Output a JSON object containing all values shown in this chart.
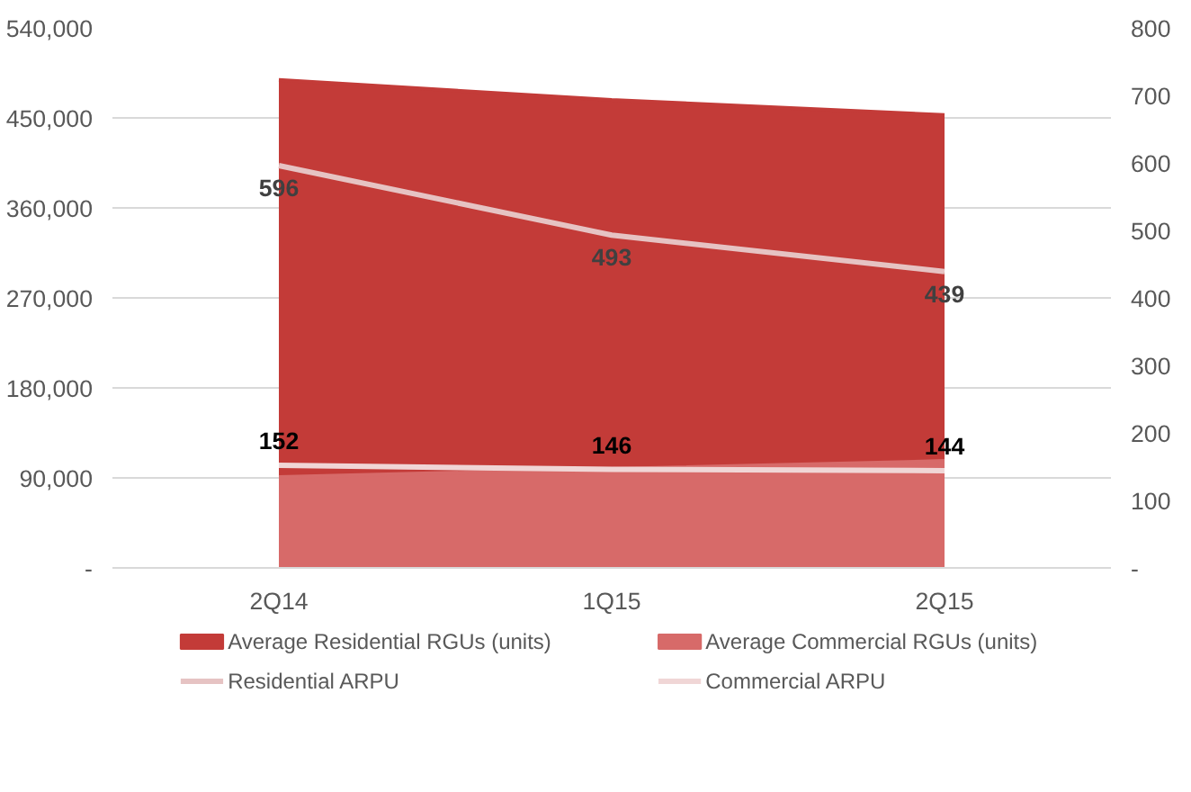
{
  "chart_data": {
    "type": "area",
    "categories": [
      "2Q14",
      "1Q15",
      "2Q15"
    ],
    "series": [
      {
        "name": "Average Residential RGUs (units)",
        "color": "#c33b38",
        "values": [
          488000,
          468000,
          453000
        ]
      },
      {
        "name": "Average Commercial RGUs (units)",
        "color": "#d76a69",
        "values": [
          91000,
          99000,
          107000
        ]
      },
      {
        "name": "Residential ARPU",
        "type": "line",
        "axis": "y2",
        "color": "#e6c3c3",
        "values": [
          596,
          493,
          439
        ],
        "value_labels": [
          "596",
          "493",
          "439"
        ]
      },
      {
        "name": "Commercial ARPU",
        "type": "line",
        "axis": "y2",
        "color": "#f0d6d6",
        "values": [
          152,
          146,
          144
        ],
        "value_labels": [
          "152",
          "146",
          "144"
        ]
      }
    ],
    "ylim": [
      0,
      540000
    ],
    "yticks": [
      {
        "value": 0,
        "label": "-"
      },
      {
        "value": 90000,
        "label": "90,000"
      },
      {
        "value": 180000,
        "label": "180,000"
      },
      {
        "value": 270000,
        "label": "270,000"
      },
      {
        "value": 360000,
        "label": "360,000"
      },
      {
        "value": 450000,
        "label": "450,000"
      },
      {
        "value": 540000,
        "label": "540,000"
      }
    ],
    "y2lim": [
      0,
      800
    ],
    "y2ticks": [
      {
        "value": 0,
        "label": "-"
      },
      100,
      200,
      300,
      400,
      500,
      600,
      700,
      800
    ],
    "grid": "y",
    "legend": "bottom",
    "marker": "none",
    "line_style": "solid"
  }
}
